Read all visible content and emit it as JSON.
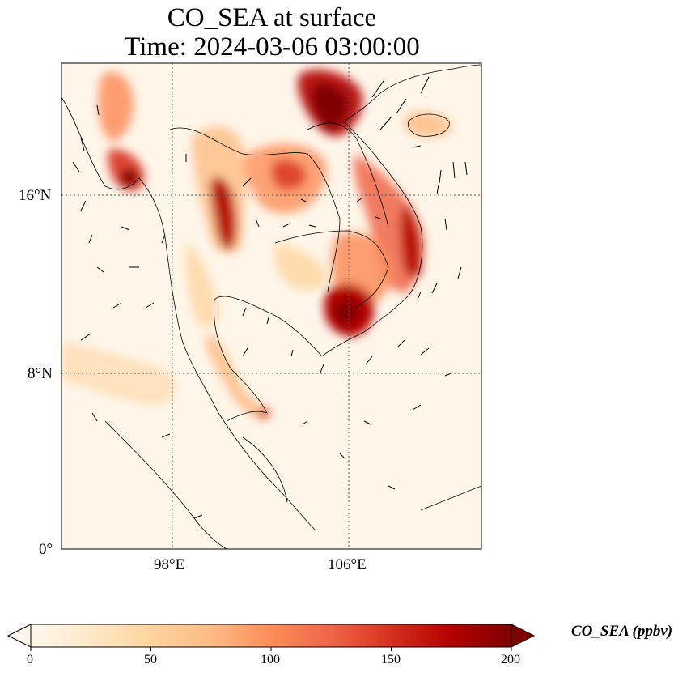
{
  "title": {
    "line1": "CO_SEA at surface",
    "line2": "Time: 2024-03-06 03:00:00"
  },
  "axes": {
    "lon_ticks": [
      "98°E",
      "106°E"
    ],
    "lat_ticks": [
      "16°N",
      "8°N",
      "0°"
    ],
    "lon_range": [
      93,
      112
    ],
    "lat_range": [
      0,
      22
    ],
    "gridlines": "dotted"
  },
  "colorbar": {
    "label": "CO_SEA (ppbv)",
    "ticks": [
      "0",
      "50",
      "100",
      "150",
      "200"
    ],
    "range": [
      0,
      200
    ],
    "extend": "both",
    "colormap": "OrRd",
    "colors": [
      "#fff7ec",
      "#fee8c8",
      "#fdd49e",
      "#fdbb84",
      "#fc8d59",
      "#ef6548",
      "#d7301f",
      "#b30000",
      "#7f0000"
    ]
  },
  "chart_data": {
    "type": "heatmap",
    "variable": "CO_SEA",
    "level": "surface",
    "time": "2024-03-06 03:00:00",
    "units": "ppbv",
    "xlabel": "",
    "ylabel": "",
    "xlim": [
      93,
      112
    ],
    "ylim": [
      0,
      22
    ],
    "clim": [
      0,
      200
    ],
    "overlays": [
      "coastlines",
      "country borders",
      "wind vectors"
    ],
    "hotspots": [
      {
        "lon": 105.4,
        "lat": 10.7,
        "value": 200
      },
      {
        "lon": 105.6,
        "lat": 20.3,
        "value": 200
      },
      {
        "lon": 96.7,
        "lat": 16.7,
        "value": 195
      },
      {
        "lon": 100.4,
        "lat": 16.0,
        "value": 170
      },
      {
        "lon": 108.3,
        "lat": 13.5,
        "value": 160
      },
      {
        "lon": 102.6,
        "lat": 16.3,
        "value": 120
      },
      {
        "lon": 100.2,
        "lat": 6.1,
        "value": 110
      }
    ]
  }
}
